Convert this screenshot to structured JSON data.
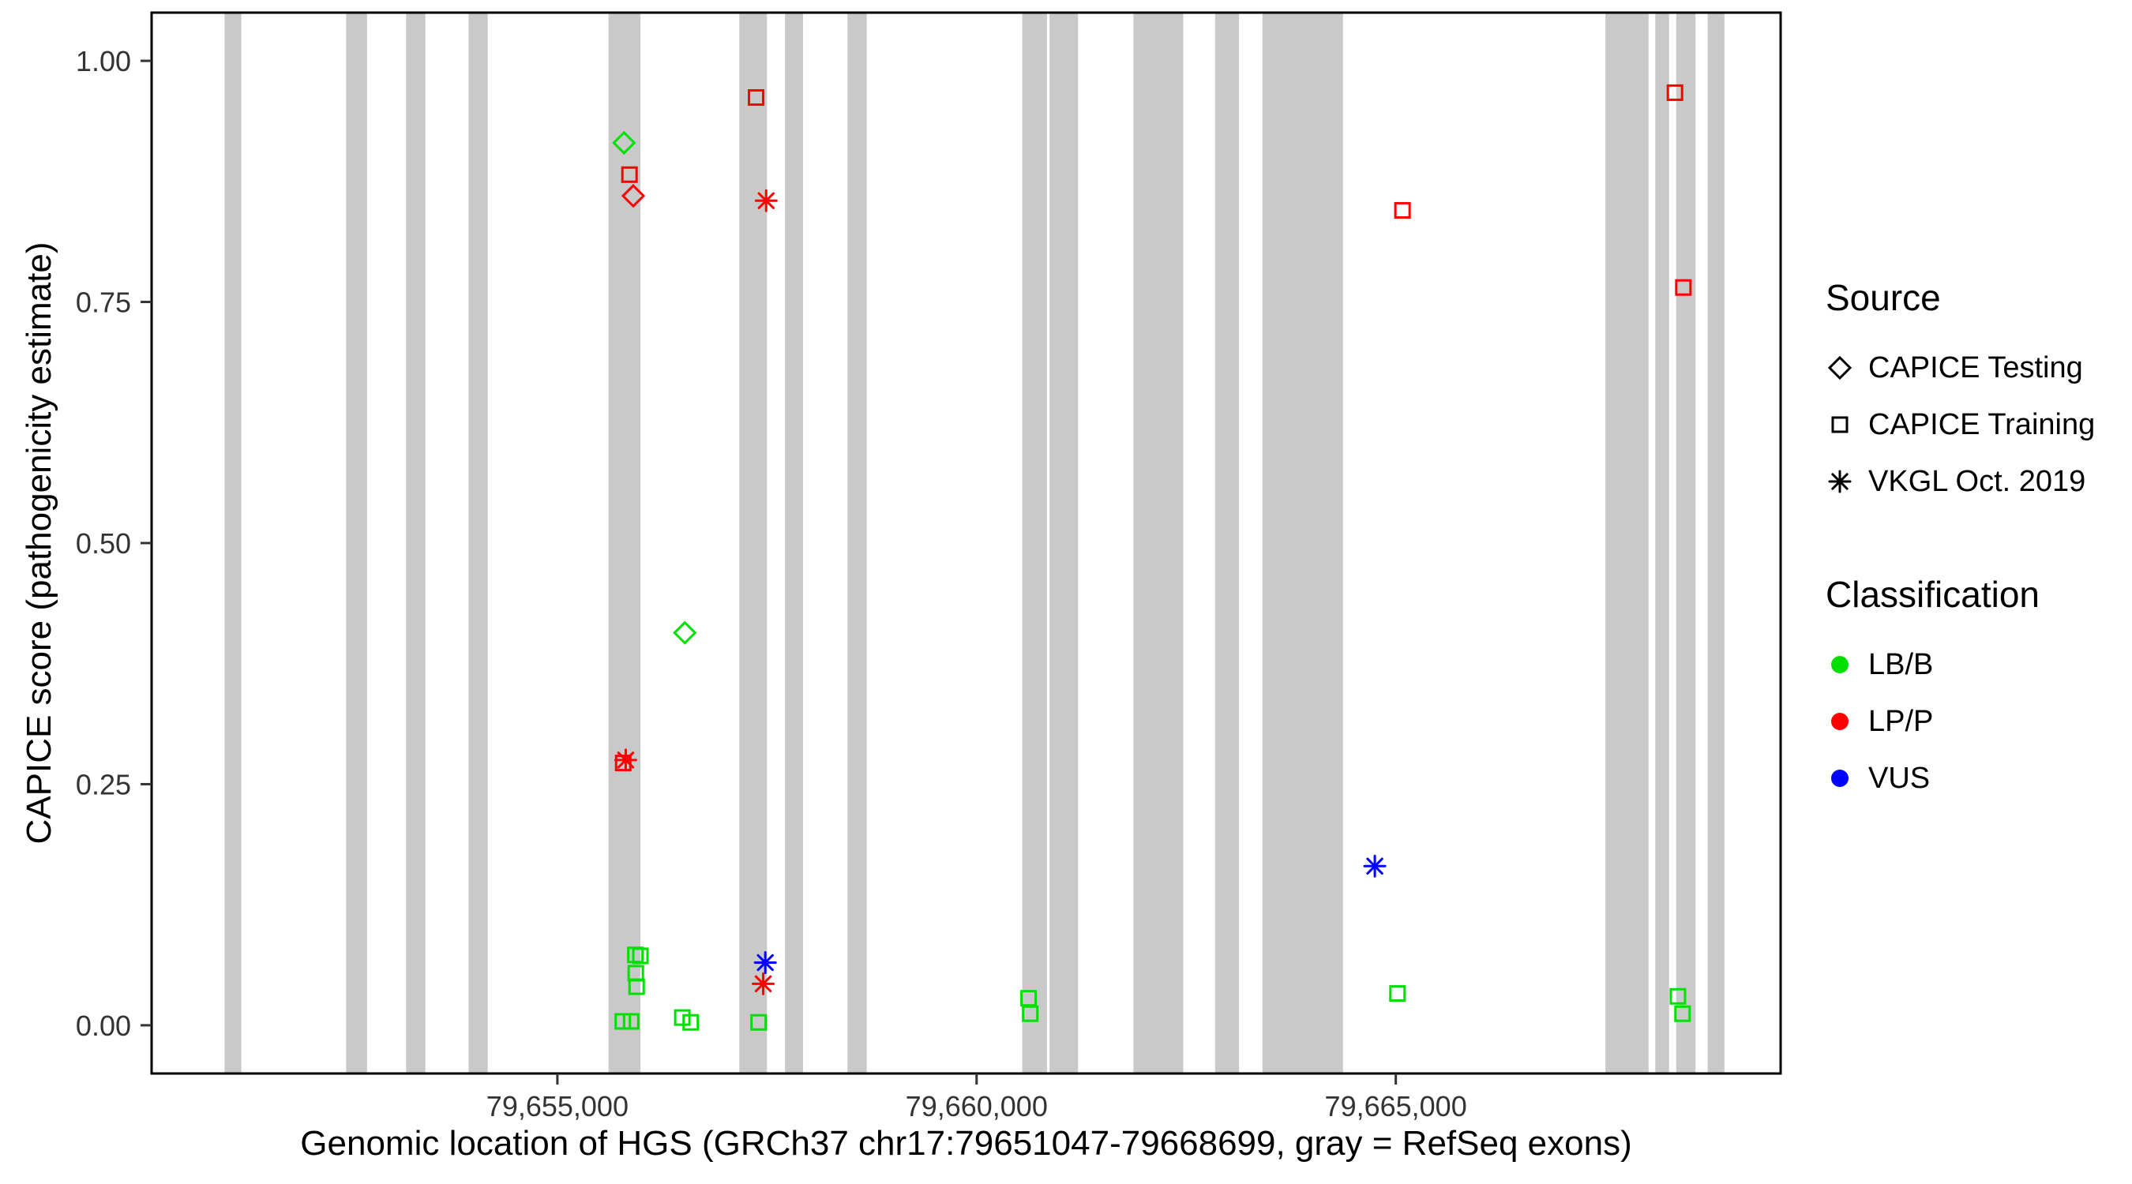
{
  "chart_data": {
    "type": "scatter",
    "title": "",
    "xlabel": "Genomic location of HGS (GRCh37 chr17:79651047-79668699, gray = RefSeq exons)",
    "ylabel": "CAPICE score (pathogenicity estimate)",
    "x_domain": [
      79650160,
      79669590
    ],
    "y_domain": [
      -0.05,
      1.05
    ],
    "grid": false,
    "legend_position": "right",
    "panel_border_color": "#000000",
    "exon_color": "#C9C9C9",
    "x_ticks": [
      {
        "value": 79655000,
        "label": "79,655,000"
      },
      {
        "value": 79660000,
        "label": "79,660,000"
      },
      {
        "value": 79665000,
        "label": "79,665,000"
      }
    ],
    "y_ticks": [
      {
        "value": 0.0,
        "label": "0.00"
      },
      {
        "value": 0.25,
        "label": "0.25"
      },
      {
        "value": 0.5,
        "label": "0.50"
      },
      {
        "value": 0.75,
        "label": "0.75"
      },
      {
        "value": 1.0,
        "label": "1.00"
      }
    ],
    "exons": [
      [
        79651030,
        79651230
      ],
      [
        79652480,
        79652730
      ],
      [
        79653195,
        79653425
      ],
      [
        79653940,
        79654170
      ],
      [
        79655610,
        79655990
      ],
      [
        79657170,
        79657500
      ],
      [
        79657715,
        79657930
      ],
      [
        79658460,
        79658690
      ],
      [
        79660545,
        79660840
      ],
      [
        79660870,
        79661210
      ],
      [
        79661870,
        79662465
      ],
      [
        79662845,
        79663130
      ],
      [
        79663410,
        79664370
      ],
      [
        79667500,
        79668015
      ],
      [
        79668095,
        79668260
      ],
      [
        79668345,
        79668575
      ],
      [
        79668720,
        79668920
      ]
    ],
    "shape_by_source": {
      "CAPICE Testing": "diamond-open",
      "CAPICE Training": "square-open",
      "VKGL Oct. 2019": "asterisk"
    },
    "color_by_class": {
      "LB/B": "#00E000",
      "LP/P": "#FF0000",
      "VUS": "#0000FF"
    },
    "points": [
      {
        "x": 79655795,
        "y": 0.915,
        "source": "CAPICE Testing",
        "classification": "LB/B"
      },
      {
        "x": 79655860,
        "y": 0.882,
        "source": "CAPICE Training",
        "classification": "LP/P"
      },
      {
        "x": 79655905,
        "y": 0.86,
        "source": "CAPICE Testing",
        "classification": "LP/P"
      },
      {
        "x": 79657370,
        "y": 0.962,
        "source": "CAPICE Training",
        "classification": "LP/P"
      },
      {
        "x": 79657490,
        "y": 0.855,
        "source": "VKGL Oct. 2019",
        "classification": "LP/P"
      },
      {
        "x": 79665080,
        "y": 0.845,
        "source": "CAPICE Training",
        "classification": "LP/P"
      },
      {
        "x": 79668330,
        "y": 0.967,
        "source": "CAPICE Training",
        "classification": "LP/P"
      },
      {
        "x": 79668430,
        "y": 0.765,
        "source": "CAPICE Training",
        "classification": "LP/P"
      },
      {
        "x": 79656520,
        "y": 0.407,
        "source": "CAPICE Testing",
        "classification": "LB/B"
      },
      {
        "x": 79655785,
        "y": 0.272,
        "source": "CAPICE Training",
        "classification": "LP/P"
      },
      {
        "x": 79655815,
        "y": 0.275,
        "source": "VKGL Oct. 2019",
        "classification": "LP/P"
      },
      {
        "x": 79655930,
        "y": 0.073,
        "source": "CAPICE Training",
        "classification": "LB/B"
      },
      {
        "x": 79655990,
        "y": 0.072,
        "source": "CAPICE Training",
        "classification": "LB/B"
      },
      {
        "x": 79655935,
        "y": 0.054,
        "source": "CAPICE Training",
        "classification": "LB/B"
      },
      {
        "x": 79655945,
        "y": 0.04,
        "source": "CAPICE Training",
        "classification": "LB/B"
      },
      {
        "x": 79655780,
        "y": 0.004,
        "source": "CAPICE Training",
        "classification": "LB/B"
      },
      {
        "x": 79655880,
        "y": 0.004,
        "source": "CAPICE Training",
        "classification": "LB/B"
      },
      {
        "x": 79656490,
        "y": 0.008,
        "source": "CAPICE Training",
        "classification": "LB/B"
      },
      {
        "x": 79656590,
        "y": 0.003,
        "source": "CAPICE Training",
        "classification": "LB/B"
      },
      {
        "x": 79657480,
        "y": 0.065,
        "source": "VKGL Oct. 2019",
        "classification": "VUS"
      },
      {
        "x": 79657455,
        "y": 0.043,
        "source": "VKGL Oct. 2019",
        "classification": "LP/P"
      },
      {
        "x": 79657400,
        "y": 0.003,
        "source": "CAPICE Training",
        "classification": "LB/B"
      },
      {
        "x": 79660620,
        "y": 0.028,
        "source": "CAPICE Training",
        "classification": "LB/B"
      },
      {
        "x": 79660640,
        "y": 0.012,
        "source": "CAPICE Training",
        "classification": "LB/B"
      },
      {
        "x": 79664750,
        "y": 0.165,
        "source": "VKGL Oct. 2019",
        "classification": "VUS"
      },
      {
        "x": 79665020,
        "y": 0.033,
        "source": "CAPICE Training",
        "classification": "LB/B"
      },
      {
        "x": 79668365,
        "y": 0.03,
        "source": "CAPICE Training",
        "classification": "LB/B"
      },
      {
        "x": 79668420,
        "y": 0.012,
        "source": "CAPICE Training",
        "classification": "LB/B"
      }
    ],
    "legend": {
      "source": {
        "title": "Source",
        "items": [
          {
            "label": "CAPICE Testing",
            "shape": "diamond-open"
          },
          {
            "label": "CAPICE Training",
            "shape": "square-open"
          },
          {
            "label": "VKGL Oct. 2019",
            "shape": "asterisk"
          }
        ]
      },
      "classification": {
        "title": "Classification",
        "items": [
          {
            "label": "LB/B",
            "color": "#00E000"
          },
          {
            "label": "LP/P",
            "color": "#FF0000"
          },
          {
            "label": "VUS",
            "color": "#0000FF"
          }
        ]
      }
    }
  }
}
